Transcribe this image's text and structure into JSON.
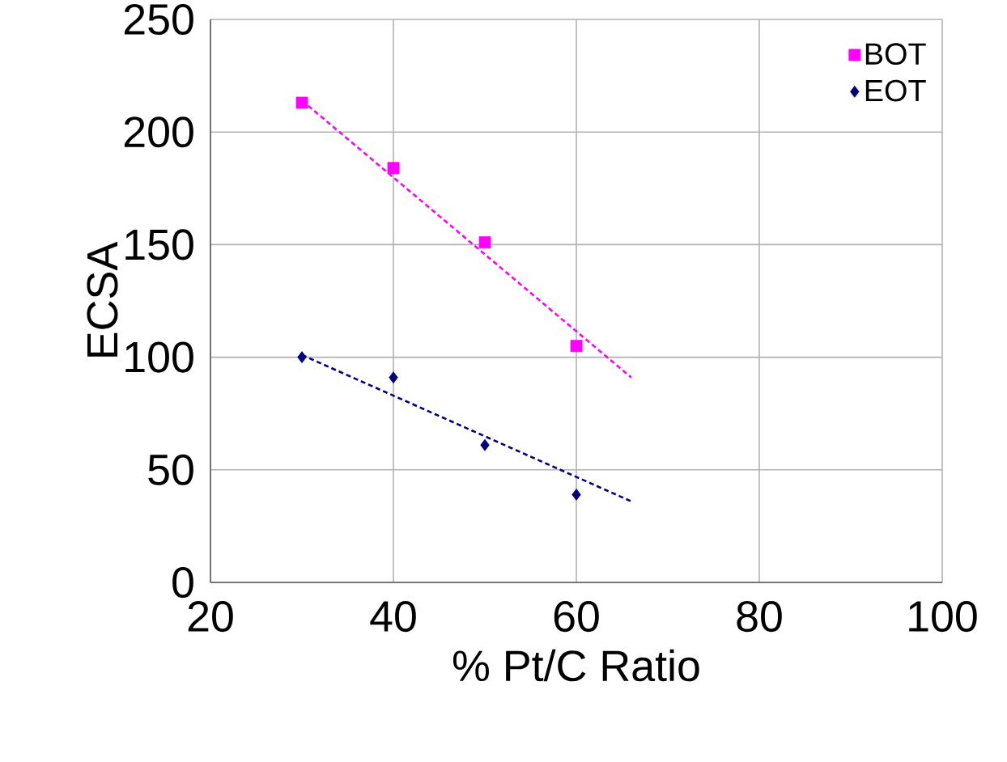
{
  "chart_data": {
    "type": "scatter",
    "xlabel": "% Pt/C Ratio",
    "ylabel": "ECSA",
    "xlim": [
      20,
      100
    ],
    "ylim": [
      0,
      250
    ],
    "xticks": [
      20,
      40,
      60,
      80,
      100
    ],
    "yticks": [
      0,
      50,
      100,
      150,
      200,
      250
    ],
    "grid": true,
    "legend": "top right",
    "series": [
      {
        "name": "BOT",
        "color": "#ff00ff",
        "marker": "square",
        "x": [
          30,
          40,
          50,
          60
        ],
        "values": [
          213,
          184,
          151,
          105
        ]
      },
      {
        "name": "EOT",
        "color": "#000080",
        "marker": "diamond",
        "x": [
          30,
          40,
          50,
          60
        ],
        "values": [
          100,
          91,
          61,
          39
        ]
      },
      {
        "type": "line",
        "color": "#ff00ff",
        "line_style": "dotted",
        "x": [
          30,
          66
        ],
        "values": [
          214,
          91
        ]
      },
      {
        "type": "line",
        "color": "#000080",
        "line_style": "dotted",
        "x": [
          30,
          66
        ],
        "values": [
          101,
          36
        ]
      }
    ]
  }
}
